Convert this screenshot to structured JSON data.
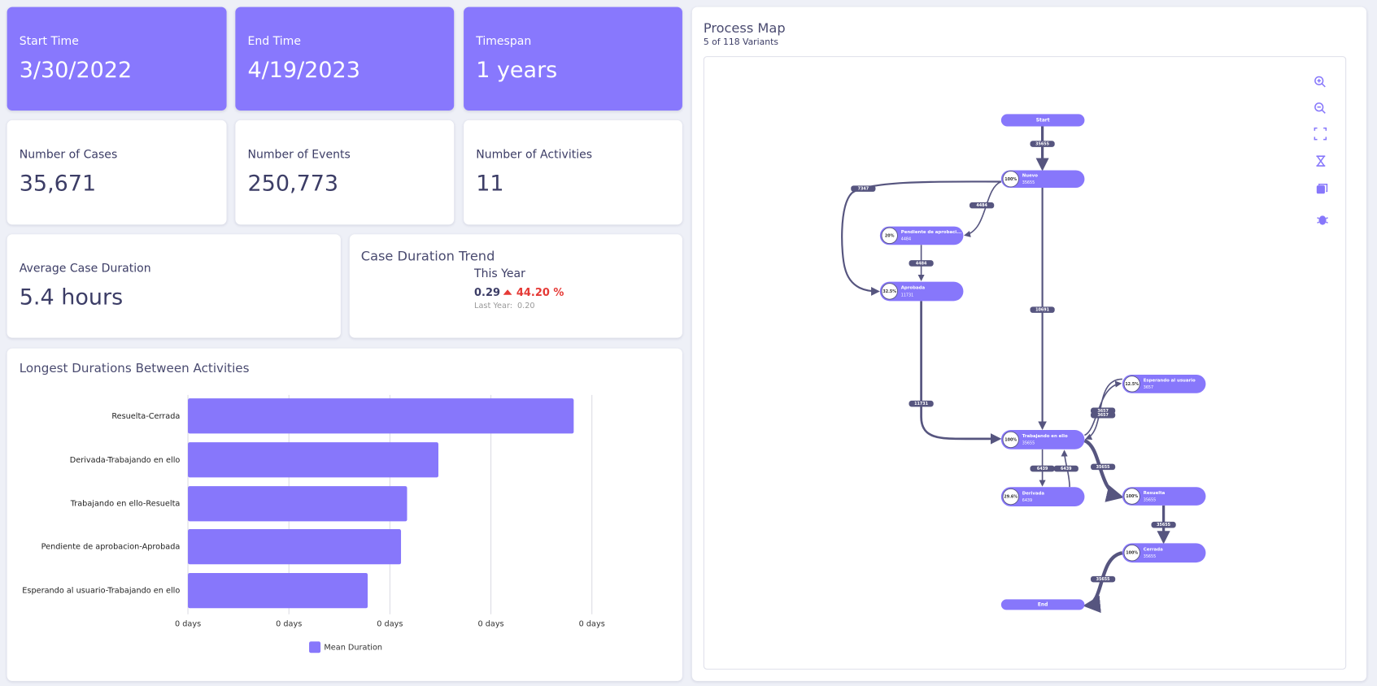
{
  "kpis": [
    {
      "label": "Start Time",
      "value": "3/30/2022"
    },
    {
      "label": "End Time",
      "value": "4/19/2023"
    },
    {
      "label": "Timespan",
      "value": "1 years"
    },
    {
      "label": "Number of Cases",
      "value": "35,671"
    },
    {
      "label": "Number of Events",
      "value": "250,773"
    },
    {
      "label": "Number of Activities",
      "value": "11"
    },
    {
      "label": "Average Case Duration",
      "value": "5.4 hours"
    }
  ],
  "trend": {
    "title": "Case Duration Trend",
    "period": "This Year",
    "value": "0.29",
    "change": "44.20 %",
    "last_label": "Last Year:",
    "last_value": "0.20"
  },
  "chart_data": {
    "type": "bar",
    "orientation": "horizontal",
    "title": "Longest Durations Between Activities",
    "categories": [
      "Resuelta-Cerrada",
      "Derivada-Trabajando en ello",
      "Trabajando en ello-Resuelta",
      "Pendiente de aprobacion-Aprobada",
      "Esperando al usuario-Trabajando en ello"
    ],
    "series": [
      {
        "name": "Mean Duration",
        "color": "#8777fb",
        "values": [
          0.382,
          0.248,
          0.217,
          0.211,
          0.178
        ]
      }
    ],
    "xlim": [
      0,
      0.4
    ],
    "xticks": [
      {
        "value": 0,
        "label": "0 days"
      },
      {
        "value": 0.1,
        "label": "0 days"
      },
      {
        "value": 0.2,
        "label": "0 days"
      },
      {
        "value": 0.3,
        "label": "0 days"
      },
      {
        "value": 0.4,
        "label": "0 days"
      }
    ],
    "grid": true,
    "legend": "bottom"
  },
  "process_map": {
    "title": "Process Map",
    "subtitle": "5 of 118 Variants",
    "nodes": [
      {
        "label": "Start"
      },
      {
        "label": "Nuevo",
        "pct": "100%",
        "count": "35655"
      },
      {
        "label": "Pendiente de aprobaci...",
        "pct": "20%",
        "count": "4484"
      },
      {
        "label": "Aprobada",
        "pct": "32.5%",
        "count": "11731"
      },
      {
        "label": "Trabajando en ello",
        "pct": "100%",
        "count": "35655"
      },
      {
        "label": "Derivada",
        "pct": "29.6%",
        "count": "6439"
      },
      {
        "label": "Esperando al usuario",
        "pct": "12.5%",
        "count": "3657"
      },
      {
        "label": "Resuelta",
        "pct": "100%",
        "count": "35655"
      },
      {
        "label": "Cerrada",
        "pct": "100%",
        "count": "35655"
      },
      {
        "label": "End"
      }
    ],
    "edges": [
      {
        "label": "35655"
      },
      {
        "label": "7347"
      },
      {
        "label": "4484"
      },
      {
        "label": "4484"
      },
      {
        "label": "10691"
      },
      {
        "label": "11731"
      },
      {
        "label": "6439"
      },
      {
        "label": "6439"
      },
      {
        "label": "3657"
      },
      {
        "label": "3657"
      },
      {
        "label": "35655"
      },
      {
        "label": "35655"
      },
      {
        "label": "35655"
      }
    ]
  }
}
